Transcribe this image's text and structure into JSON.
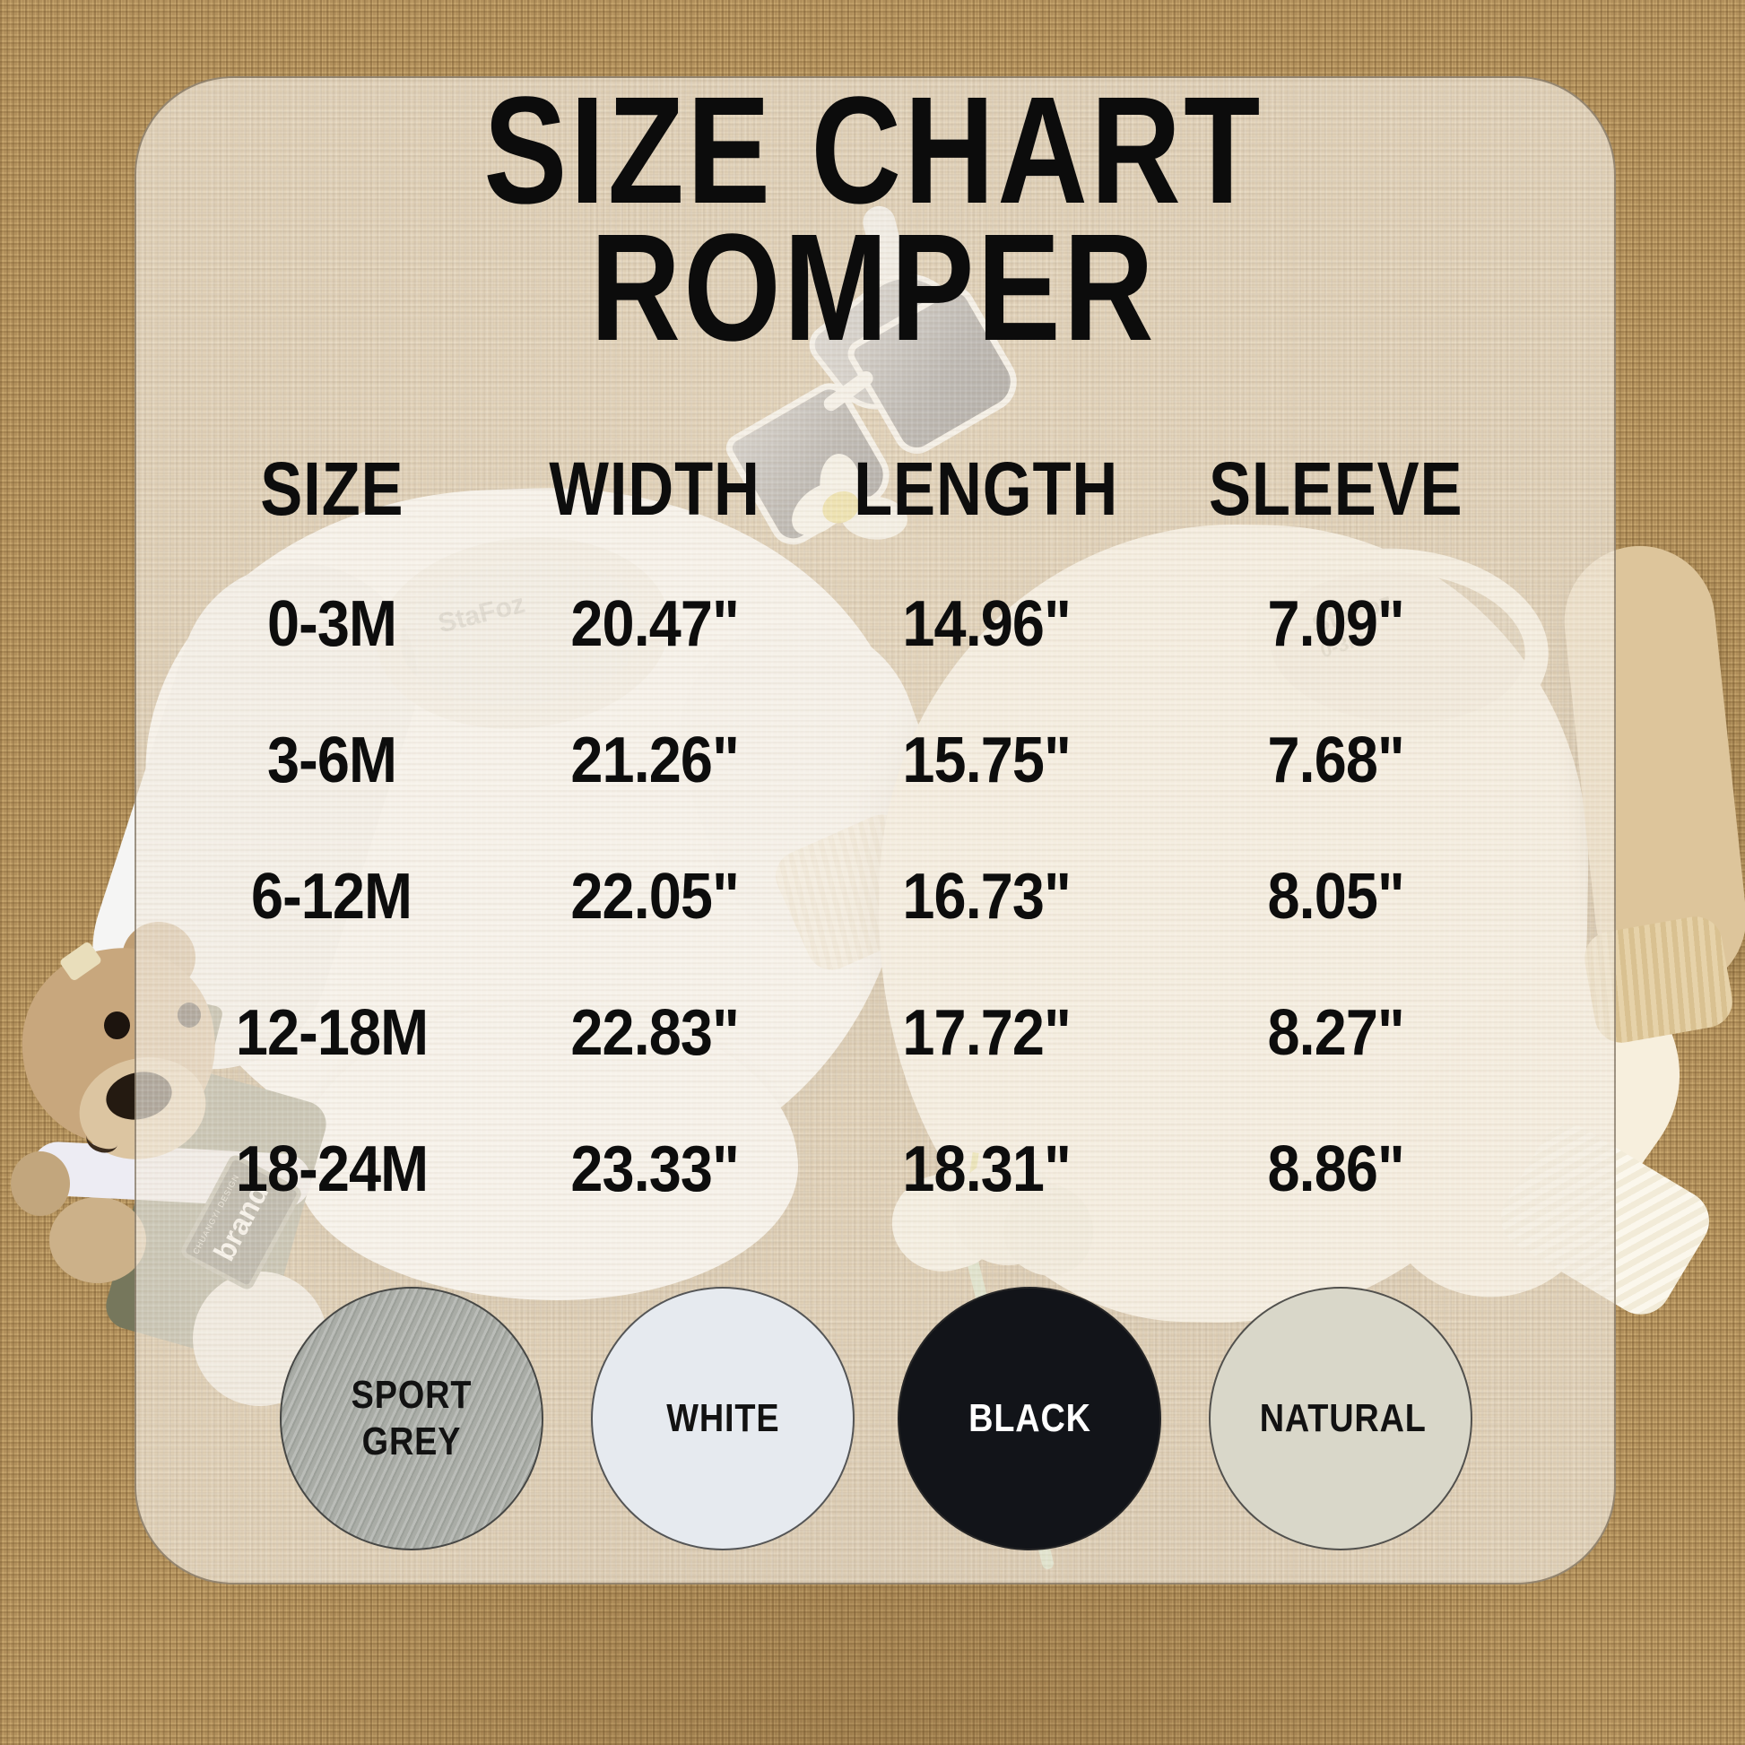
{
  "title": {
    "line1": "SIZE CHART",
    "line2": "ROMPER"
  },
  "table": {
    "headers": [
      "SIZE",
      "WIDTH",
      "LENGTH",
      "SLEEVE"
    ],
    "rows": [
      {
        "size": "0-3M",
        "width": "20.47\"",
        "length": "14.96\"",
        "sleeve": "7.09\""
      },
      {
        "size": "3-6M",
        "width": "21.26\"",
        "length": "15.75\"",
        "sleeve": "7.68\""
      },
      {
        "size": "6-12M",
        "width": "22.05\"",
        "length": "16.73\"",
        "sleeve": "8.05\""
      },
      {
        "size": "12-18M",
        "width": "22.83\"",
        "length": "17.72\"",
        "sleeve": "8.27\""
      },
      {
        "size": "18-24M",
        "width": "23.33\"",
        "length": "18.31\"",
        "sleeve": "8.86\""
      }
    ]
  },
  "swatches": [
    {
      "label": "SPORT GREY",
      "color": "#a9aca6",
      "text_color": "#121212"
    },
    {
      "label": "WHITE",
      "color": "#e6eaef",
      "text_color": "#121212"
    },
    {
      "label": "BLACK",
      "color": "#121419",
      "text_color": "#ffffff"
    },
    {
      "label": "NATURAL",
      "color": "#d9d7c9",
      "text_color": "#121212"
    }
  ],
  "photo": {
    "collar_brand": "StaFoz",
    "collar_size_tag": "0-3m",
    "teddy_label": "brand",
    "teddy_label_small": "CHUANGYI DESIGN",
    "decor_icons": [
      "white-romper-photo",
      "cream-romper-photo",
      "sunglasses-photo",
      "daisy-photo",
      "tulip-photo",
      "teddy-bear-photo"
    ]
  },
  "colors": {
    "burlap": "#b2905c",
    "panel": "#f2ebde",
    "text": "#0d0d0d"
  },
  "chart_data": {
    "type": "table",
    "title": "SIZE CHART ROMPER",
    "columns": [
      "SIZE",
      "WIDTH",
      "LENGTH",
      "SLEEVE"
    ],
    "rows": [
      [
        "0-3M",
        "20.47\"",
        "14.96\"",
        "7.09\""
      ],
      [
        "3-6M",
        "21.26\"",
        "15.75\"",
        "7.68\""
      ],
      [
        "6-12M",
        "22.05\"",
        "16.73\"",
        "8.05\""
      ],
      [
        "12-18M",
        "22.83\"",
        "17.72\"",
        "8.27\""
      ],
      [
        "18-24M",
        "23.33\"",
        "18.31\"",
        "8.86\""
      ]
    ],
    "units": "inches",
    "colors_available": [
      "SPORT GREY",
      "WHITE",
      "BLACK",
      "NATURAL"
    ]
  }
}
